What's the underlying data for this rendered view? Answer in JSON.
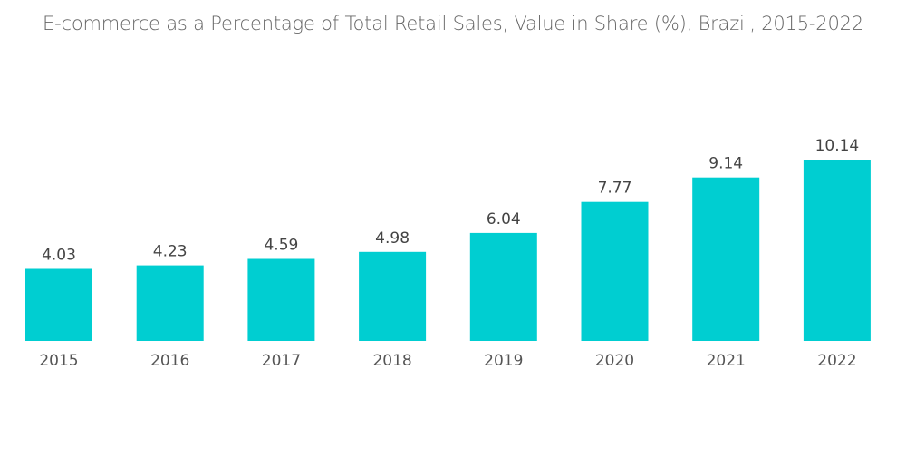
{
  "chart_data": {
    "type": "bar",
    "title": "E-commerce as a Percentage of Total Retail Sales, Value in Share (%), Brazil, 2015-2022",
    "xlabel": "",
    "ylabel": "",
    "categories": [
      "2015",
      "2016",
      "2017",
      "2018",
      "2019",
      "2020",
      "2021",
      "2022"
    ],
    "values": [
      4.03,
      4.23,
      4.59,
      4.98,
      6.04,
      7.77,
      9.14,
      10.14
    ],
    "data_labels": [
      "4.03",
      "4.23",
      "4.59",
      "4.98",
      "6.04",
      "7.77",
      "9.14",
      "10.14"
    ],
    "ylim": [
      0,
      10.14
    ],
    "grid": false,
    "legend": "none",
    "bar_color": "#00CED1"
  }
}
